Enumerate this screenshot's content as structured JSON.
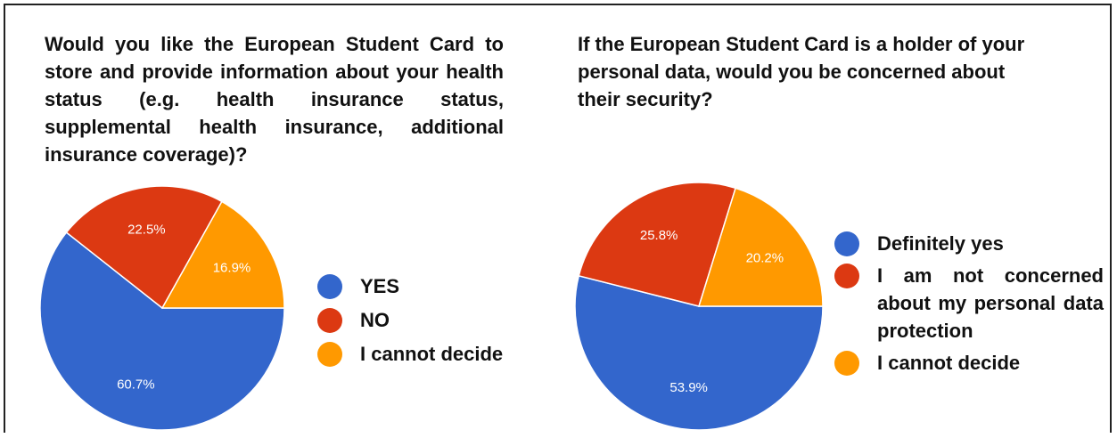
{
  "chart_data": [
    {
      "type": "pie",
      "title": "Would you like the European Student Card to store and provide information about your health status (e.g. health insurance status, supplemental health insurance, additional insurance coverage)?",
      "categories": [
        "YES",
        "NO",
        "I cannot decide"
      ],
      "values": [
        60.7,
        22.5,
        16.9
      ],
      "labels": [
        "60.7%",
        "22.5%",
        "16.9%"
      ],
      "colors": [
        "#3366cc",
        "#dc3912",
        "#ff9900"
      ],
      "legend": "right"
    },
    {
      "type": "pie",
      "title": "If the European Student Card is a holder of your personal data, would you be concerned about their security?",
      "categories": [
        "Definitely yes",
        "I am not concerned about my personal data protection",
        "I cannot decide"
      ],
      "values": [
        53.9,
        25.8,
        20.2
      ],
      "labels": [
        "53.9%",
        "25.8%",
        "20.2%"
      ],
      "colors": [
        "#3366cc",
        "#dc3912",
        "#ff9900"
      ],
      "legend": "right"
    }
  ]
}
